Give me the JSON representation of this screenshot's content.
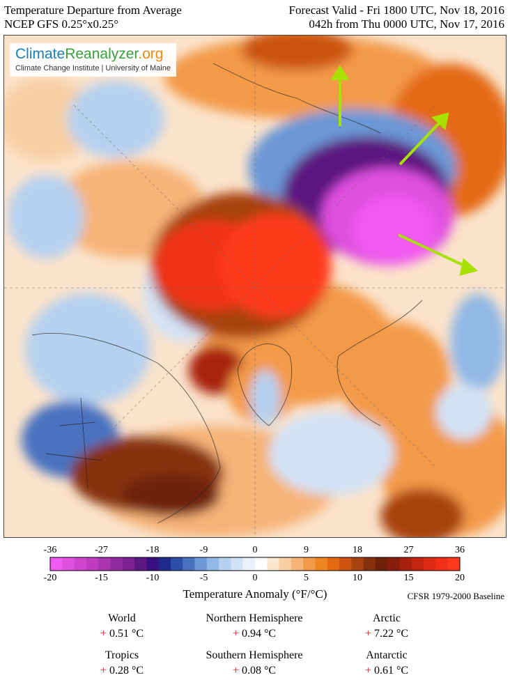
{
  "header": {
    "title": "Temperature Departure from Average",
    "source": "NCEP GFS 0.25°x0.25°",
    "valid": "Forecast Valid - Fri 1800 UTC, Nov 18, 2016",
    "lead": "042h from Thu 0000 UTC, Nov 17, 2016"
  },
  "logo": {
    "part1": "Climate",
    "part2": "Reanalyzer",
    "part3": ".org",
    "subtitle": "Climate Change Institute | University of Maine"
  },
  "colorbar": {
    "fahrenheit_ticks": [
      "-36",
      "-27",
      "-18",
      "-9",
      "0",
      "9",
      "18",
      "27",
      "36"
    ],
    "celsius_ticks": [
      "-20",
      "-15",
      "-10",
      "-5",
      "0",
      "5",
      "10",
      "15",
      "20"
    ],
    "title": "Temperature Anomaly (°F/°C)",
    "baseline": "CFSR 1979-2000 Baseline",
    "colors": [
      "#f05af0",
      "#e04fe0",
      "#d045d0",
      "#bf3bc0",
      "#a933b0",
      "#92299f",
      "#7a2090",
      "#5b1880",
      "#3a1080",
      "#1e2b8c",
      "#2c4da8",
      "#4872c0",
      "#6c98d6",
      "#92b8e6",
      "#b6d0f0",
      "#d2e2f6",
      "#eaf1fb",
      "#ffffff",
      "#fbe6d0",
      "#f8cfa4",
      "#f6b478",
      "#f39a4a",
      "#ef8422",
      "#e46a12",
      "#cc5410",
      "#a8420e",
      "#86300c",
      "#6e200a",
      "#8a1c0c",
      "#a8200e",
      "#c42412",
      "#dc2a14",
      "#f03018",
      "#ff3a1c"
    ]
  },
  "stats": [
    {
      "name": "World",
      "sign": "+",
      "value": "0.51 °C"
    },
    {
      "name": "Northern Hemisphere",
      "sign": "+",
      "value": "0.94 °C"
    },
    {
      "name": "Arctic",
      "sign": "+",
      "value": "7.22 °C"
    },
    {
      "name": "Tropics",
      "sign": "+",
      "value": "0.28 °C"
    },
    {
      "name": "Southern Hemisphere",
      "sign": "+",
      "value": "0.08 °C"
    },
    {
      "name": "Antarctic",
      "sign": "+",
      "value": "0.61 °C"
    }
  ]
}
